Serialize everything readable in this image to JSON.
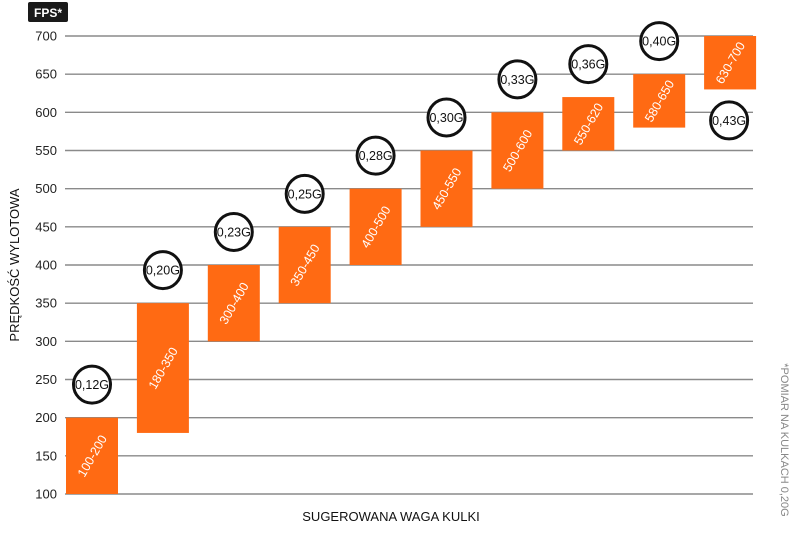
{
  "chart_data": {
    "type": "bar",
    "unit_label": "FPS*",
    "ylabel": "PRĘDKOŚĆ WYLOTOWA",
    "xlabel": "SUGEROWANA WAGA KULKI",
    "note": "*POMIAR NA KULKACH 0,20G",
    "ylim": [
      100,
      700
    ],
    "yticks": [
      100,
      150,
      200,
      250,
      300,
      350,
      400,
      450,
      500,
      550,
      600,
      650,
      700
    ],
    "grid": true,
    "colors": {
      "bar": "#ff6a13",
      "grid": "#8a8a8a",
      "circle_stroke": "#111111",
      "unit_badge": "#1a1a1a"
    },
    "bars": [
      {
        "label": "100-200",
        "low": 100,
        "high": 200,
        "weight": "0,12G"
      },
      {
        "label": "180-350",
        "low": 180,
        "high": 350,
        "weight": "0,20G"
      },
      {
        "label": "300-400",
        "low": 300,
        "high": 400,
        "weight": "0,23G"
      },
      {
        "label": "350-450",
        "low": 350,
        "high": 450,
        "weight": "0,25G"
      },
      {
        "label": "400-500",
        "low": 400,
        "high": 500,
        "weight": "0,28G"
      },
      {
        "label": "450-550",
        "low": 450,
        "high": 550,
        "weight": "0,30G"
      },
      {
        "label": "500-600",
        "low": 500,
        "high": 600,
        "weight": "0,33G"
      },
      {
        "label": "550-620",
        "low": 550,
        "high": 620,
        "weight": "0,36G"
      },
      {
        "label": "580-650",
        "low": 580,
        "high": 650,
        "weight": "0,40G"
      },
      {
        "label": "630-700",
        "low": 630,
        "high": 700,
        "weight": "0,43G"
      }
    ]
  }
}
